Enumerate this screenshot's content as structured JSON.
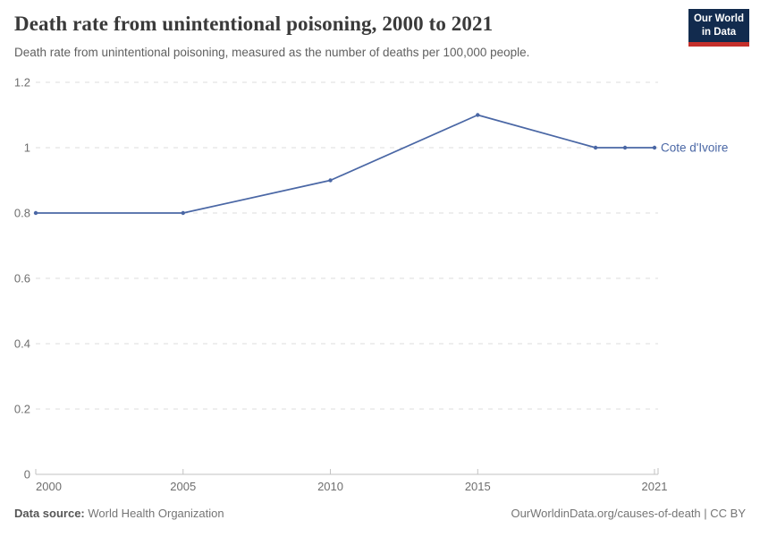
{
  "header": {
    "title": "Death rate from unintentional poisoning, 2000 to 2021",
    "subtitle": "Death rate from unintentional poisoning, measured as the number of deaths per 100,000 people.",
    "logo": {
      "line1": "Our World",
      "line2": "in Data"
    }
  },
  "chart_data": {
    "type": "line",
    "title": "Death rate from unintentional poisoning, 2000 to 2021",
    "xlabel": "",
    "ylabel": "Deaths per 100,000 people",
    "xlim": [
      2000,
      2021
    ],
    "ylim": [
      0,
      1.2
    ],
    "grid": "horizontal-dashed",
    "legend": "inline-entity-label",
    "x_ticks": [
      {
        "v": 2000,
        "label": "2000",
        "anchor": "start"
      },
      {
        "v": 2005,
        "label": "2005",
        "anchor": "middle"
      },
      {
        "v": 2010,
        "label": "2010",
        "anchor": "middle"
      },
      {
        "v": 2015,
        "label": "2015",
        "anchor": "middle"
      },
      {
        "v": 2021,
        "label": "2021",
        "anchor": "middle"
      }
    ],
    "y_ticks": [
      {
        "v": 0,
        "label": "0"
      },
      {
        "v": 0.2,
        "label": "0.2"
      },
      {
        "v": 0.4,
        "label": "0.4"
      },
      {
        "v": 0.6,
        "label": "0.6"
      },
      {
        "v": 0.8,
        "label": "0.8"
      },
      {
        "v": 1,
        "label": "1"
      },
      {
        "v": 1.2,
        "label": "1.2"
      }
    ],
    "series": [
      {
        "name": "Cote d'Ivoire",
        "color": "#4a67a5",
        "points": [
          [
            2000,
            0.8
          ],
          [
            2005,
            0.8
          ],
          [
            2010,
            0.9
          ],
          [
            2015,
            1.1
          ],
          [
            2019,
            1.0
          ],
          [
            2020,
            1.0
          ],
          [
            2021,
            1.0
          ]
        ]
      }
    ]
  },
  "footer": {
    "datasource_label": "Data source:",
    "datasource_value": " World Health Organization",
    "credit": "OurWorldinData.org/causes-of-death | CC BY"
  },
  "colors": {
    "series_blue": "#4a67a5",
    "logo_navy": "#122b4e",
    "logo_red": "#c5302b",
    "gridline": "#dcdcdc",
    "axis": "#c2c2c2",
    "tick_label": "#6e6e6e",
    "title_text": "#3a3a3a",
    "subtitle_text": "#5f5f5f"
  }
}
